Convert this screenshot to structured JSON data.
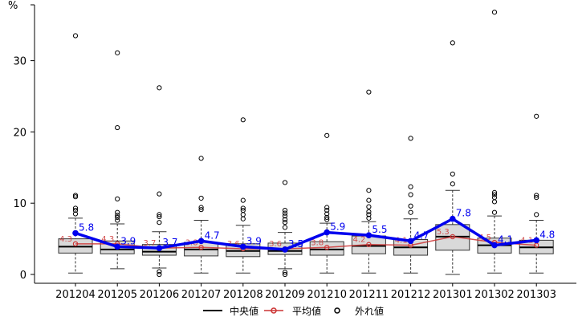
{
  "chart_data": {
    "type": "boxplot",
    "y_unit": "%",
    "ylim": [
      0,
      38
    ],
    "y_ticks": [
      0,
      10,
      20,
      30
    ],
    "categories": [
      "201204",
      "201205",
      "201206",
      "201207",
      "201208",
      "201209",
      "201210",
      "201211",
      "201212",
      "201301",
      "201302",
      "201303"
    ],
    "boxes": [
      {
        "low": 0.2,
        "q1": 3.0,
        "median": 3.9,
        "q3": 5.0,
        "high": 7.9,
        "outliers": [
          8.5,
          9.0,
          9.3,
          10.9,
          11.1,
          33.5
        ]
      },
      {
        "low": 0.8,
        "q1": 2.9,
        "median": 3.5,
        "q3": 4.7,
        "high": 7.1,
        "outliers": [
          7.6,
          8.0,
          8.3,
          8.7,
          10.6,
          20.6,
          31.1
        ]
      },
      {
        "low": 0.9,
        "q1": 2.7,
        "median": 3.2,
        "q3": 4.2,
        "high": 6.0,
        "outliers": [
          0.0,
          0.4,
          7.3,
          8.1,
          8.4,
          11.3,
          26.2
        ]
      },
      {
        "low": 0.2,
        "q1": 2.6,
        "median": 3.5,
        "q3": 4.5,
        "high": 7.6,
        "outliers": [
          9.1,
          9.4,
          10.7,
          16.3
        ]
      },
      {
        "low": 0.2,
        "q1": 2.5,
        "median": 3.3,
        "q3": 4.3,
        "high": 6.9,
        "outliers": [
          7.8,
          8.4,
          9.0,
          9.3,
          10.4,
          21.7
        ]
      },
      {
        "low": 0.8,
        "q1": 2.8,
        "median": 3.3,
        "q3": 4.4,
        "high": 5.9,
        "outliers": [
          0.0,
          0.3,
          6.6,
          7.3,
          7.7,
          8.2,
          8.6,
          9.0,
          12.9
        ]
      },
      {
        "low": 0.2,
        "q1": 2.7,
        "median": 3.5,
        "q3": 4.6,
        "high": 7.2,
        "outliers": [
          7.7,
          8.0,
          8.5,
          9.0,
          9.4,
          19.5
        ]
      },
      {
        "low": 0.2,
        "q1": 2.9,
        "median": 4.0,
        "q3": 5.4,
        "high": 7.4,
        "outliers": [
          7.9,
          8.4,
          8.8,
          9.5,
          10.4,
          11.8,
          25.6
        ]
      },
      {
        "low": 0.2,
        "q1": 2.7,
        "median": 3.8,
        "q3": 4.9,
        "high": 7.8,
        "outliers": [
          8.7,
          9.6,
          11.2,
          12.3,
          19.1
        ]
      },
      {
        "low": 0.0,
        "q1": 3.4,
        "median": 5.3,
        "q3": 7.0,
        "high": 11.8,
        "outliers": [
          12.7,
          14.1,
          32.5
        ]
      },
      {
        "low": 0.2,
        "q1": 3.0,
        "median": 4.1,
        "q3": 5.1,
        "high": 8.2,
        "outliers": [
          8.7,
          10.2,
          10.8,
          11.2,
          11.5,
          36.8
        ]
      },
      {
        "low": 0.2,
        "q1": 2.9,
        "median": 3.8,
        "q3": 4.8,
        "high": 7.6,
        "outliers": [
          8.4,
          10.8,
          11.1,
          22.2
        ]
      }
    ],
    "series": [
      {
        "name": "平均値",
        "values": [
          4.3,
          4.3,
          3.7,
          3.8,
          3.6,
          3.6,
          3.8,
          4.2,
          4.1,
          5.3,
          4.5,
          4.1
        ],
        "labels": [
          "4.3",
          "4.3",
          "3.7",
          "3.8",
          "3.6",
          "3.6",
          "3.8",
          "4.2",
          "4.1",
          "5.3",
          "4.5",
          "4.1"
        ],
        "color": "#cc3333"
      },
      {
        "values": [
          5.8,
          3.9,
          3.7,
          4.7,
          3.9,
          3.5,
          5.9,
          5.5,
          4.7,
          7.8,
          4.1,
          4.8
        ],
        "labels": [
          "5.8",
          "3.9",
          "3.7",
          "4.7",
          "3.9",
          "3.5",
          "5.9",
          "5.5",
          "4.7",
          "7.8",
          "4.1",
          "4.8"
        ],
        "color": "#0000ee"
      }
    ],
    "legend": {
      "position": "bottom",
      "entries": [
        {
          "key": "median",
          "label": "中央値"
        },
        {
          "key": "mean",
          "label": "平均値"
        },
        {
          "key": "outlier",
          "label": "外れ値"
        }
      ]
    },
    "colors": {
      "box_fill": "#d9d9d9",
      "axis": "#000000"
    }
  }
}
